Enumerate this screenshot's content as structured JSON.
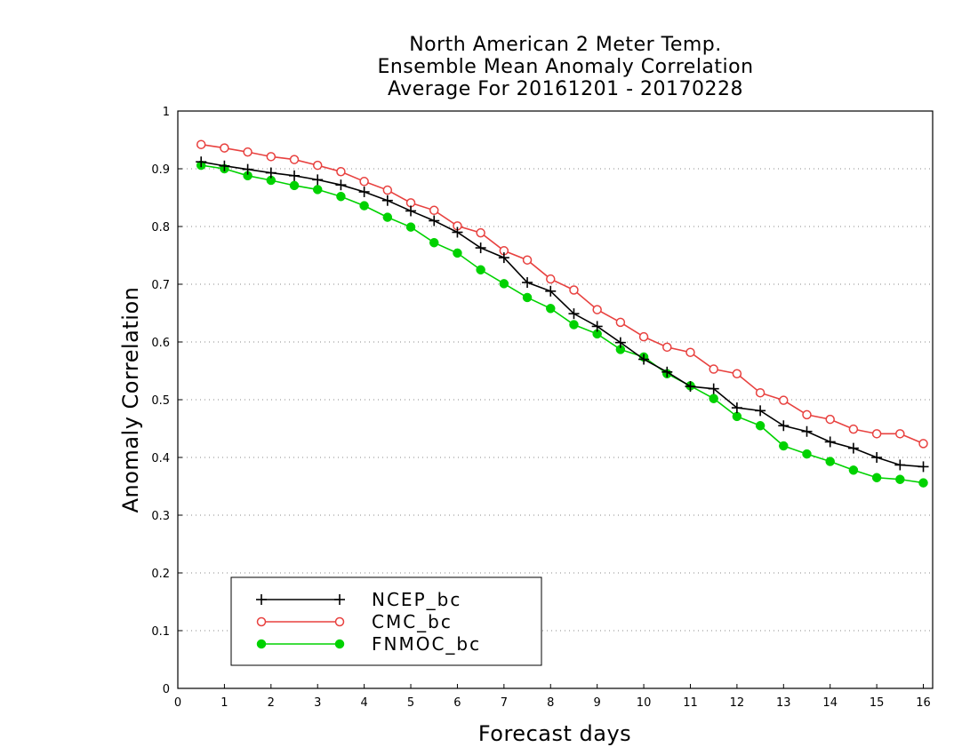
{
  "chart_data": {
    "type": "line",
    "title_lines": [
      "North American 2 Meter Temp.",
      "Ensemble Mean Anomaly Correlation",
      "Average For 20161201 - 20170228"
    ],
    "xlabel": "Forecast days",
    "ylabel": "Anomaly Correlation",
    "xlim": [
      0,
      16.2
    ],
    "ylim": [
      0,
      1
    ],
    "xticks": [
      "0",
      "1",
      "2",
      "3",
      "4",
      "5",
      "6",
      "7",
      "8",
      "9",
      "10",
      "11",
      "12",
      "13",
      "14",
      "15",
      "16"
    ],
    "yticks": [
      "0",
      "0.1",
      "0.2",
      "0.3",
      "0.4",
      "0.5",
      "0.6",
      "0.7",
      "0.8",
      "0.9",
      "1"
    ],
    "grid": "horizontal dotted",
    "legend_position": "bottom-left",
    "x": [
      0.5,
      1,
      1.5,
      2,
      2.5,
      3,
      3.5,
      4,
      4.5,
      5,
      5.5,
      6,
      6.5,
      7,
      7.5,
      8,
      8.5,
      9,
      9.5,
      10,
      10.5,
      11,
      11.5,
      12,
      12.5,
      13,
      13.5,
      14,
      14.5,
      15,
      15.5,
      16
    ],
    "series": [
      {
        "name": "NCEP_bc",
        "color": "#000000",
        "marker": "plus",
        "values": [
          0.912,
          0.905,
          0.899,
          0.893,
          0.888,
          0.881,
          0.872,
          0.86,
          0.845,
          0.827,
          0.81,
          0.79,
          0.763,
          0.746,
          0.703,
          0.688,
          0.649,
          0.627,
          0.599,
          0.57,
          0.548,
          0.523,
          0.519,
          0.486,
          0.481,
          0.455,
          0.445,
          0.427,
          0.416,
          0.4,
          0.387,
          0.384
        ]
      },
      {
        "name": "CMC_bc",
        "color": "#e8413f",
        "marker": "open-circle",
        "values": [
          0.942,
          0.936,
          0.929,
          0.921,
          0.916,
          0.906,
          0.895,
          0.878,
          0.863,
          0.841,
          0.828,
          0.801,
          0.789,
          0.758,
          0.742,
          0.709,
          0.69,
          0.656,
          0.634,
          0.609,
          0.591,
          0.582,
          0.553,
          0.545,
          0.512,
          0.499,
          0.474,
          0.466,
          0.449,
          0.441,
          0.441,
          0.424
        ]
      },
      {
        "name": "FNMOC_bc",
        "color": "#00d200",
        "marker": "filled-circle",
        "values": [
          0.906,
          0.9,
          0.888,
          0.88,
          0.871,
          0.864,
          0.852,
          0.836,
          0.816,
          0.799,
          0.772,
          0.754,
          0.725,
          0.701,
          0.677,
          0.658,
          0.63,
          0.614,
          0.587,
          0.574,
          0.545,
          0.524,
          0.502,
          0.471,
          0.455,
          0.42,
          0.406,
          0.393,
          0.378,
          0.365,
          0.362,
          0.356
        ]
      }
    ]
  }
}
